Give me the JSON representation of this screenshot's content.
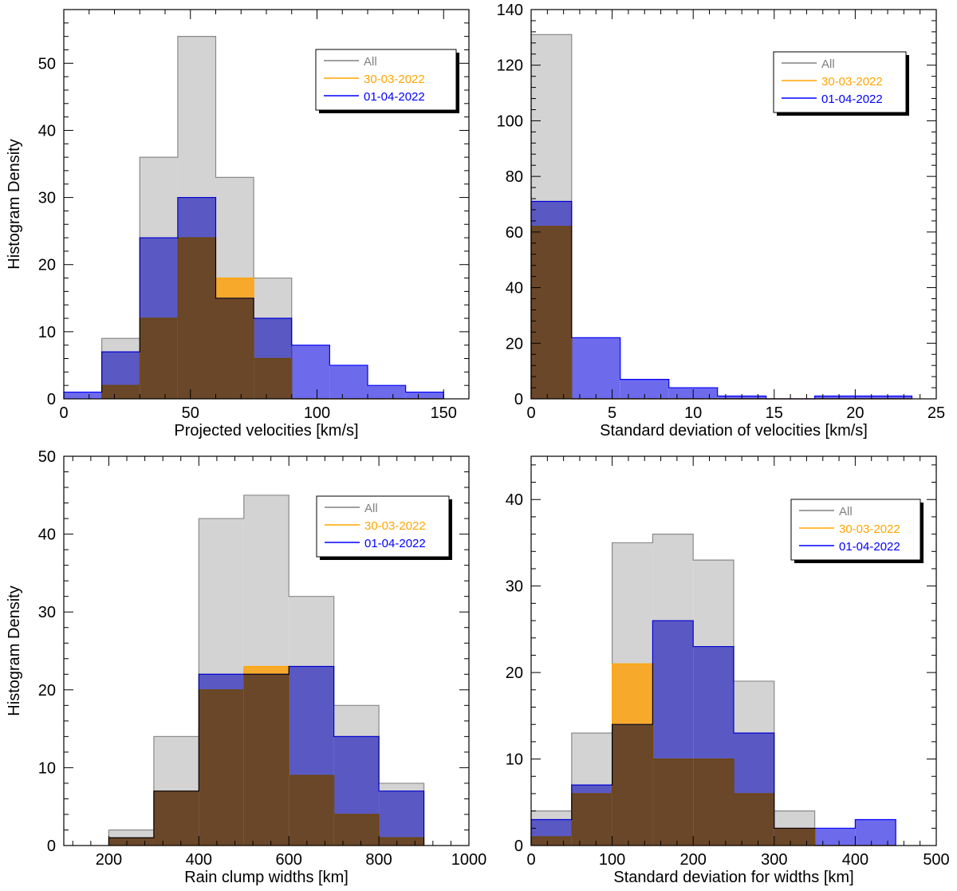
{
  "colors": {
    "all": "#808080",
    "d1": "#ffa500",
    "d2": "#0000ff"
  },
  "legend": [
    {
      "key": "all",
      "label": "All"
    },
    {
      "key": "d1",
      "label": "30-03-2022"
    },
    {
      "key": "d2",
      "label": "01-04-2022"
    }
  ],
  "chart_data": [
    {
      "id": "velocities",
      "type": "bar",
      "xlabel": "Projected velocities [km/s]",
      "ylabel": "Histogram Density",
      "xlim": [
        0,
        160
      ],
      "ylim": [
        0,
        58
      ],
      "xticks": [
        0,
        50,
        100,
        150
      ],
      "yticks": [
        0,
        10,
        20,
        30,
        40,
        50
      ],
      "bin_edges": [
        0,
        15,
        30,
        45,
        60,
        75,
        90,
        105,
        120,
        135,
        150
      ],
      "series": [
        {
          "name": "All",
          "key": "all",
          "values": [
            0,
            9,
            36,
            54,
            33,
            18,
            0,
            0,
            0,
            0
          ]
        },
        {
          "name": "30-03-2022",
          "key": "d1",
          "values": [
            0,
            2,
            12,
            24,
            18,
            6,
            0,
            0,
            0,
            0
          ]
        },
        {
          "name": "01-04-2022",
          "key": "d2",
          "values": [
            1,
            7,
            24,
            30,
            15,
            12,
            8,
            5,
            2,
            1
          ]
        }
      ],
      "legend_position": "top-right"
    },
    {
      "id": "std-velocities",
      "type": "bar",
      "xlabel": "Standard deviation of velocities [km/s]",
      "ylabel": "",
      "xlim": [
        0,
        25
      ],
      "ylim": [
        0,
        140
      ],
      "xticks": [
        0,
        5,
        10,
        15,
        20,
        25
      ],
      "yticks": [
        0,
        20,
        40,
        60,
        80,
        100,
        120,
        140
      ],
      "bin_edges": [
        0,
        2.5,
        5.5,
        8.5,
        11.5,
        14.5,
        17.5,
        20.5,
        23.5
      ],
      "series": [
        {
          "name": "All",
          "key": "all",
          "values": [
            131,
            0,
            0,
            0,
            0,
            0,
            0,
            0
          ]
        },
        {
          "name": "30-03-2022",
          "key": "d1",
          "values": [
            62,
            0,
            0,
            0,
            0,
            0,
            0,
            0
          ]
        },
        {
          "name": "01-04-2022",
          "key": "d2",
          "values": [
            71,
            22,
            7,
            4,
            1,
            0,
            1,
            1
          ]
        }
      ],
      "legend_position": "top-right"
    },
    {
      "id": "widths",
      "type": "bar",
      "xlabel": "Rain clump widths [km]",
      "ylabel": "Histogram Density",
      "xlim": [
        100,
        1000
      ],
      "ylim": [
        0,
        50
      ],
      "xticks": [
        200,
        400,
        600,
        800,
        1000
      ],
      "yticks": [
        0,
        10,
        20,
        30,
        40,
        50
      ],
      "bin_edges": [
        200,
        300,
        400,
        500,
        600,
        700,
        800,
        900
      ],
      "series": [
        {
          "name": "All",
          "key": "all",
          "values": [
            2,
            14,
            42,
            45,
            32,
            18,
            8
          ]
        },
        {
          "name": "30-03-2022",
          "key": "d1",
          "values": [
            1,
            7,
            20,
            23,
            9,
            4,
            1
          ]
        },
        {
          "name": "01-04-2022",
          "key": "d2",
          "values": [
            1,
            7,
            22,
            22,
            23,
            14,
            7
          ]
        }
      ],
      "legend_position": "top-right"
    },
    {
      "id": "std-widths",
      "type": "bar",
      "xlabel": "Standard deviation for widths [km]",
      "ylabel": "",
      "xlim": [
        0,
        500
      ],
      "ylim": [
        0,
        45
      ],
      "xticks": [
        0,
        100,
        200,
        300,
        400,
        500
      ],
      "yticks": [
        0,
        10,
        20,
        30,
        40
      ],
      "bin_edges": [
        0,
        50,
        100,
        150,
        200,
        250,
        300,
        350,
        400,
        450
      ],
      "series": [
        {
          "name": "All",
          "key": "all",
          "values": [
            4,
            13,
            35,
            36,
            33,
            19,
            4,
            0,
            0
          ]
        },
        {
          "name": "30-03-2022",
          "key": "d1",
          "values": [
            1,
            6,
            21,
            10,
            10,
            6,
            2,
            0,
            0
          ]
        },
        {
          "name": "01-04-2022",
          "key": "d2",
          "values": [
            3,
            7,
            14,
            26,
            23,
            13,
            2,
            2,
            3
          ]
        }
      ],
      "legend_position": "top-right"
    }
  ]
}
